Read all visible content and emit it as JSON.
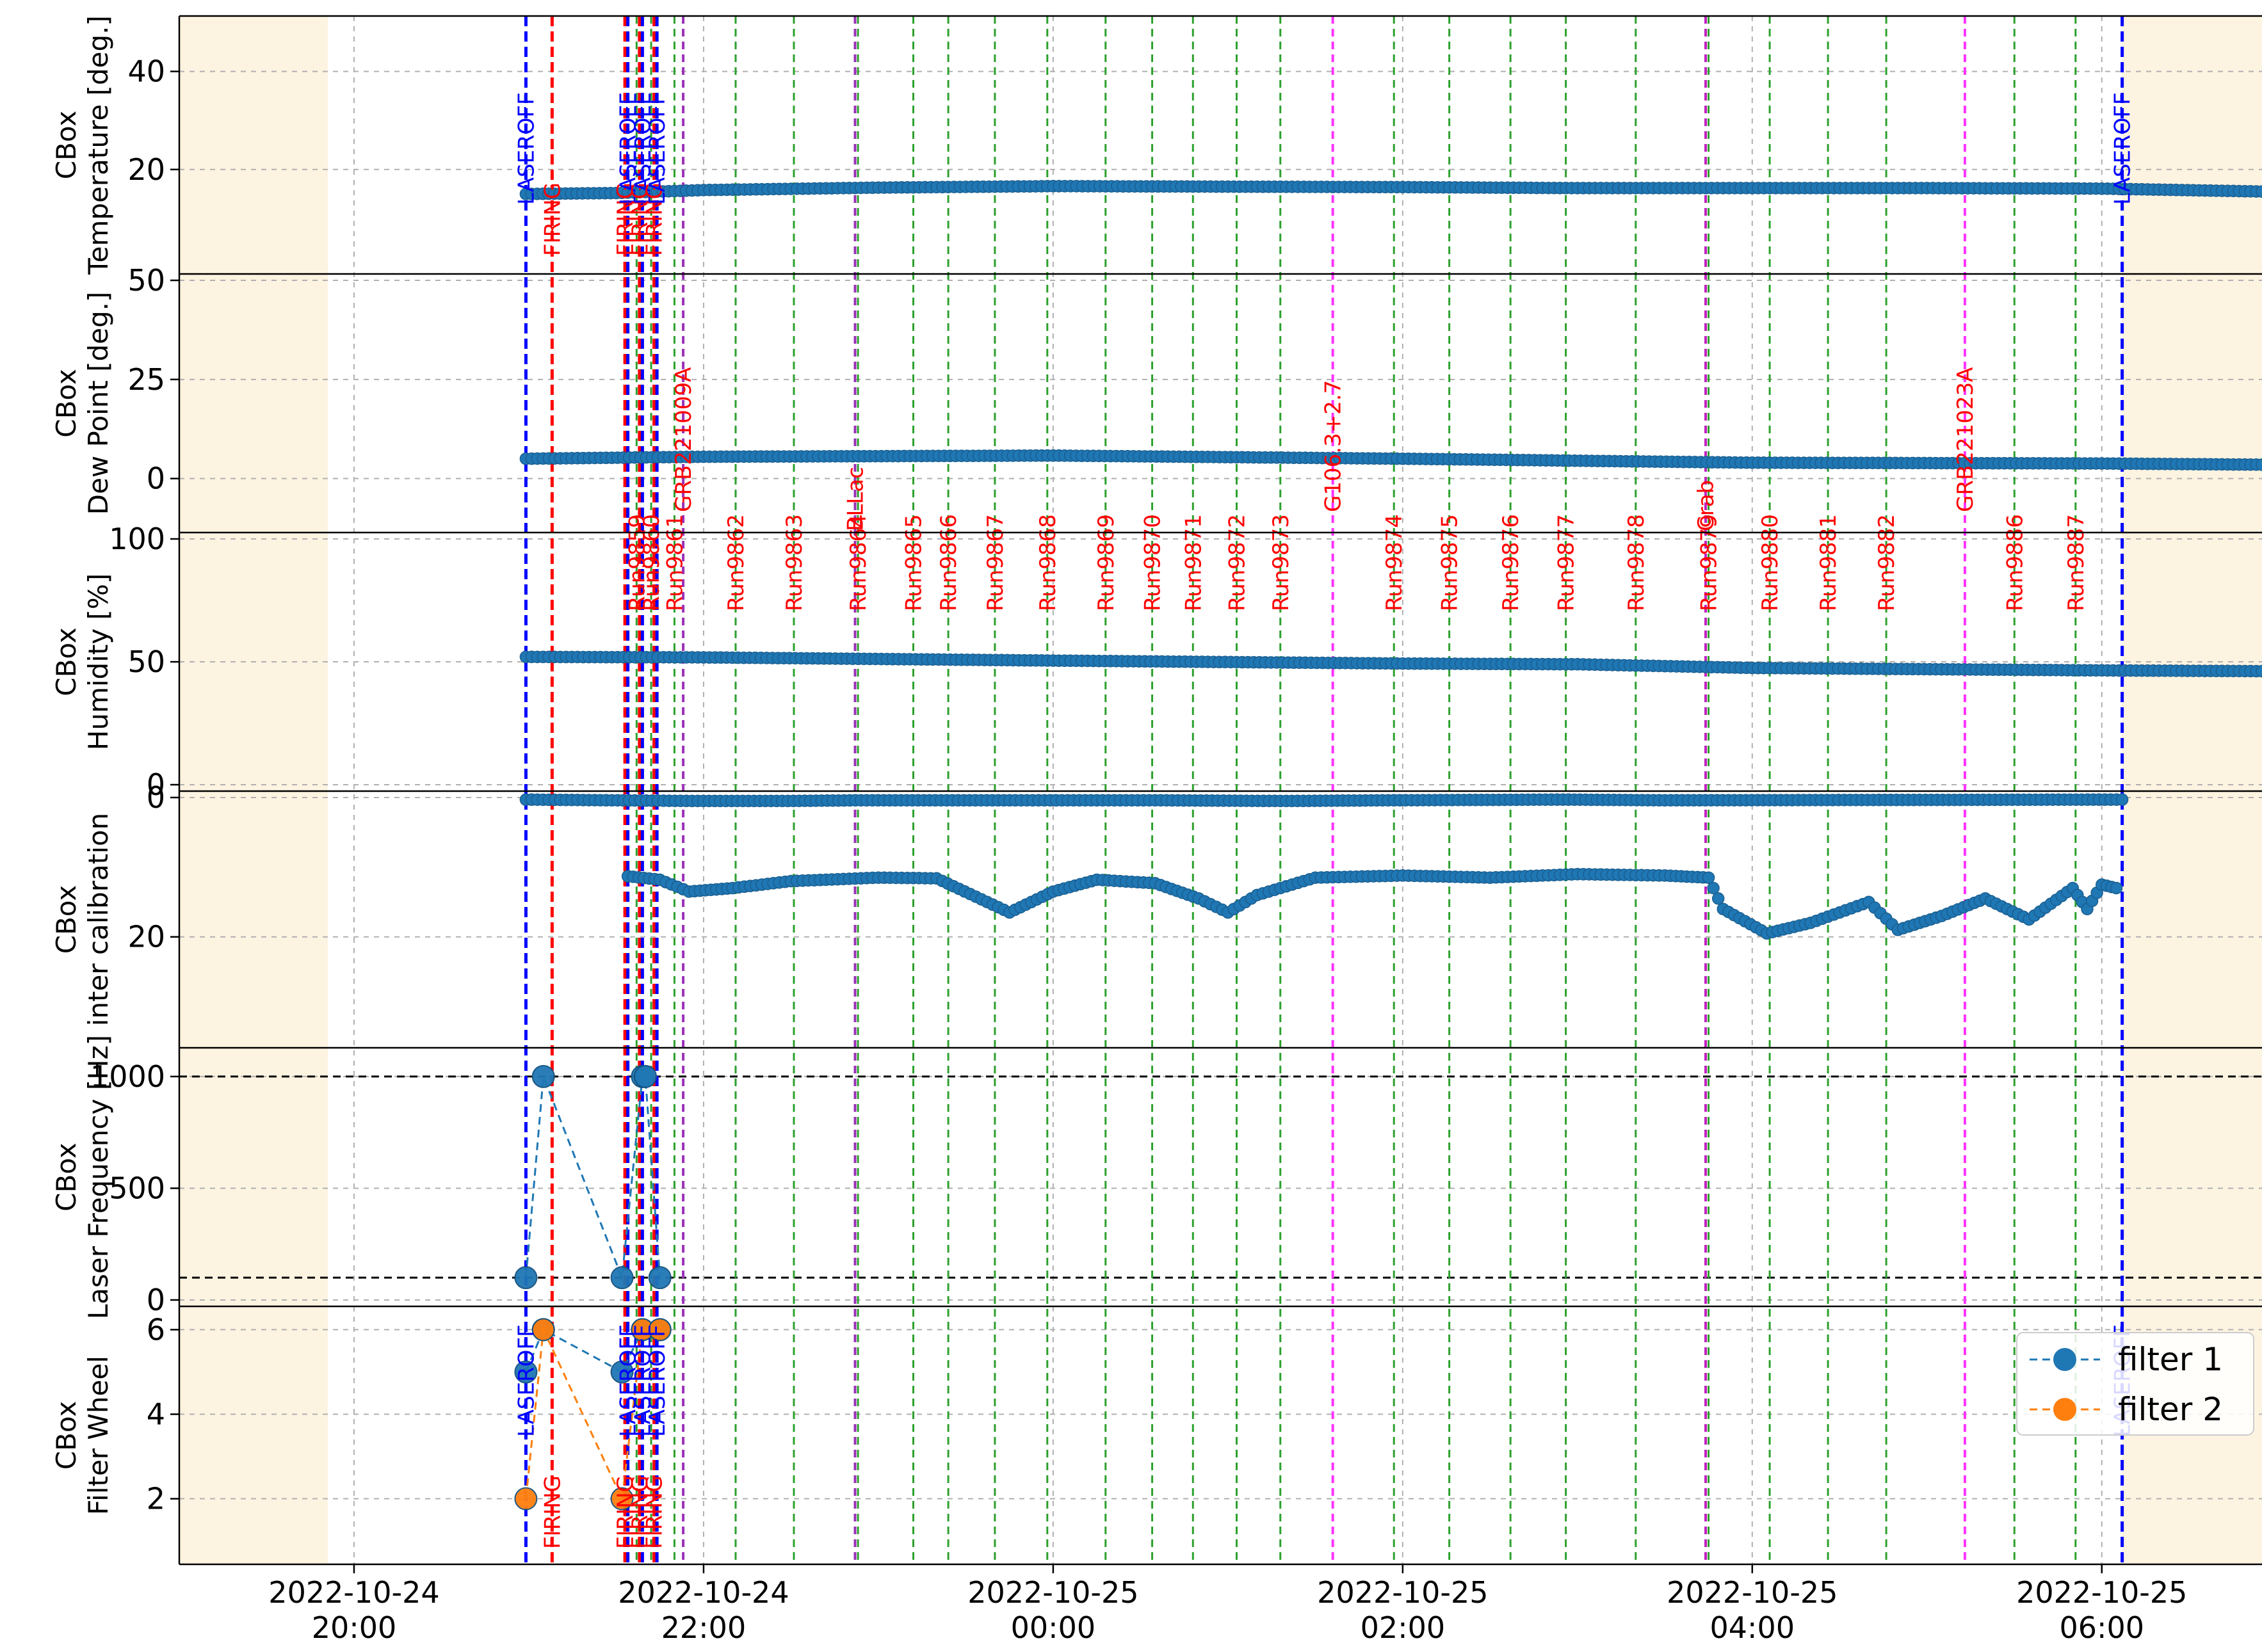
{
  "chart_data": {
    "type": "scatter",
    "x_axis": {
      "kind": "time",
      "range": [
        "2022-10-24T19:00",
        "2022-10-25T06:55"
      ],
      "ticks": [
        {
          "t": "2022-10-24T20:00",
          "line1": "2022-10-24",
          "line2": "20:00"
        },
        {
          "t": "2022-10-24T22:00",
          "line1": "2022-10-24",
          "line2": "22:00"
        },
        {
          "t": "2022-10-25T00:00",
          "line1": "2022-10-25",
          "line2": "00:00"
        },
        {
          "t": "2022-10-25T02:00",
          "line1": "2022-10-25",
          "line2": "02:00"
        },
        {
          "t": "2022-10-25T04:00",
          "line1": "2022-10-25",
          "line2": "04:00"
        },
        {
          "t": "2022-10-25T06:00",
          "line1": "2022-10-25",
          "line2": "06:00"
        }
      ]
    },
    "shaded_regions": [
      {
        "start": "2022-10-24T19:00",
        "end": "2022-10-24T19:51",
        "color": "#fdf3e1"
      },
      {
        "start": "2022-10-25T06:07",
        "end": "2022-10-25T06:55",
        "color": "#fdf3e1"
      }
    ],
    "panels": [
      {
        "ylabel": [
          "CBox",
          "Temperature [deg.]"
        ],
        "ylim": [
          0,
          50
        ],
        "yticks": [
          20,
          40
        ],
        "series": [
          {
            "name": "Temperature",
            "color": "#1f77b4",
            "points": [
              [
                "2022-10-24T20:59",
                15.0
              ],
              [
                "2022-10-24T21:30",
                15.2
              ],
              [
                "2022-10-24T22:00",
                15.8
              ],
              [
                "2022-10-24T23:00",
                16.3
              ],
              [
                "2022-10-25T00:00",
                16.6
              ],
              [
                "2022-10-25T01:00",
                16.5
              ],
              [
                "2022-10-25T02:00",
                16.4
              ],
              [
                "2022-10-25T03:00",
                16.2
              ],
              [
                "2022-10-25T04:00",
                16.2
              ],
              [
                "2022-10-25T05:00",
                16.2
              ],
              [
                "2022-10-25T06:00",
                16.1
              ],
              [
                "2022-10-25T06:55",
                15.5
              ]
            ]
          }
        ]
      },
      {
        "ylabel": [
          "CBox",
          "Dew Point [deg.]"
        ],
        "ylim": [
          -12,
          50
        ],
        "yticks": [
          0,
          25,
          50
        ],
        "series": [
          {
            "name": "Dew Point",
            "color": "#1f77b4",
            "points": [
              [
                "2022-10-24T20:59",
                5.0
              ],
              [
                "2022-10-24T22:00",
                5.5
              ],
              [
                "2022-10-25T00:00",
                5.8
              ],
              [
                "2022-10-25T02:00",
                5.0
              ],
              [
                "2022-10-25T04:00",
                4.0
              ],
              [
                "2022-10-25T06:00",
                3.8
              ],
              [
                "2022-10-25T06:55",
                3.5
              ]
            ]
          }
        ]
      },
      {
        "ylabel": [
          "CBox",
          "Humidity [%]"
        ],
        "ylim": [
          0,
          100
        ],
        "yticks": [
          0,
          50,
          100
        ],
        "series": [
          {
            "name": "Humidity",
            "color": "#1f77b4",
            "points": [
              [
                "2022-10-24T20:59",
                52.0
              ],
              [
                "2022-10-24T22:00",
                51.8
              ],
              [
                "2022-10-25T00:00",
                50.5
              ],
              [
                "2022-10-25T02:00",
                49.3
              ],
              [
                "2022-10-25T03:00",
                49.0
              ],
              [
                "2022-10-25T04:00",
                47.5
              ],
              [
                "2022-10-25T06:00",
                46.5
              ],
              [
                "2022-10-25T06:55",
                46.2
              ]
            ]
          }
        ]
      },
      {
        "ylabel": [
          "CBox",
          "inter calibration"
        ],
        "ylim": [
          0,
          35
        ],
        "yticks": [
          0,
          20
        ],
        "inverted": true,
        "series": [
          {
            "name": "inter calibration",
            "color": "#1f77b4",
            "points": [
              [
                "2022-10-24T21:34",
                11.3
              ],
              [
                "2022-10-24T21:45",
                11.8
              ],
              [
                "2022-10-24T21:55",
                13.5
              ],
              [
                "2022-10-24T22:10",
                13.0
              ],
              [
                "2022-10-24T22:30",
                12.0
              ],
              [
                "2022-10-24T23:00",
                11.5
              ],
              [
                "2022-10-24T23:20",
                11.6
              ],
              [
                "2022-10-24T23:45",
                16.5
              ],
              [
                "2022-10-25T00:00",
                13.5
              ],
              [
                "2022-10-25T00:15",
                11.8
              ],
              [
                "2022-10-25T00:35",
                12.3
              ],
              [
                "2022-10-25T00:50",
                14.5
              ],
              [
                "2022-10-25T01:00",
                16.5
              ],
              [
                "2022-10-25T01:10",
                14.0
              ],
              [
                "2022-10-25T01:30",
                11.5
              ],
              [
                "2022-10-25T02:00",
                11.2
              ],
              [
                "2022-10-25T02:30",
                11.5
              ],
              [
                "2022-10-25T03:00",
                11.0
              ],
              [
                "2022-10-25T03:30",
                11.2
              ],
              [
                "2022-10-25T03:45",
                11.5
              ],
              [
                "2022-10-25T03:50",
                16.0
              ],
              [
                "2022-10-25T04:05",
                19.5
              ],
              [
                "2022-10-25T04:20",
                18.0
              ],
              [
                "2022-10-25T04:40",
                15.0
              ],
              [
                "2022-10-25T04:50",
                19.0
              ],
              [
                "2022-10-25T05:05",
                17.0
              ],
              [
                "2022-10-25T05:20",
                14.5
              ],
              [
                "2022-10-25T05:35",
                17.5
              ],
              [
                "2022-10-25T05:50",
                13.0
              ],
              [
                "2022-10-25T05:55",
                16.0
              ],
              [
                "2022-10-25T06:00",
                12.5
              ],
              [
                "2022-10-25T06:05",
                13.0
              ]
            ]
          },
          {
            "name": "inter calibration near 0",
            "color": "#1f77b4",
            "points": [
              [
                "2022-10-24T20:59",
                0.3
              ],
              [
                "2022-10-24T21:58",
                0.5
              ],
              [
                "2022-10-24T22:27",
                0.5
              ],
              [
                "2022-10-24T22:54",
                0.4
              ],
              [
                "2022-10-24T23:47",
                0.4
              ],
              [
                "2022-10-25T00:35",
                0.4
              ],
              [
                "2022-10-25T01:20",
                0.5
              ],
              [
                "2022-10-25T01:55",
                0.4
              ],
              [
                "2022-10-25T02:55",
                0.3
              ],
              [
                "2022-10-25T03:30",
                0.4
              ],
              [
                "2022-10-25T06:07",
                0.3
              ]
            ]
          }
        ]
      },
      {
        "ylabel": [
          "CBox",
          "Laser Frequency [Hz]"
        ],
        "ylim": [
          0,
          1100
        ],
        "yticks": [
          0,
          500,
          1000
        ],
        "hlines": [
          1000,
          100
        ],
        "series": [
          {
            "name": "Laser Frequency",
            "color": "#1f77b4",
            "connected": true,
            "points": [
              [
                "2022-10-24T20:59",
                100
              ],
              [
                "2022-10-24T21:05",
                1000
              ],
              [
                "2022-10-24T21:32",
                100
              ],
              [
                "2022-10-24T21:39",
                1000
              ],
              [
                "2022-10-24T21:40",
                1000
              ],
              [
                "2022-10-24T21:45",
                100
              ]
            ]
          }
        ]
      },
      {
        "ylabel": [
          "CBox",
          "Filter Wheel"
        ],
        "ylim": [
          0.6,
          6.4
        ],
        "yticks": [
          2,
          4,
          6
        ],
        "series": [
          {
            "name": "filter 1",
            "color": "#1f77b4",
            "connected": true,
            "points": [
              [
                "2022-10-24T20:59",
                5.0
              ],
              [
                "2022-10-24T21:05",
                6.0
              ],
              [
                "2022-10-24T21:32",
                5.0
              ],
              [
                "2022-10-24T21:39",
                6.0
              ],
              [
                "2022-10-24T21:45",
                6.0
              ]
            ]
          },
          {
            "name": "filter 2",
            "color": "#ff7f0e",
            "connected": true,
            "points": [
              [
                "2022-10-24T20:59",
                2.0
              ],
              [
                "2022-10-24T21:05",
                6.0
              ],
              [
                "2022-10-24T21:32",
                2.0
              ],
              [
                "2022-10-24T21:39",
                6.0
              ],
              [
                "2022-10-24T21:45",
                6.0
              ]
            ]
          }
        ]
      }
    ],
    "laser_events": [
      {
        "t": "2022-10-24T20:59",
        "label": "LASEROFF",
        "color": "#0000ff"
      },
      {
        "t": "2022-10-24T21:08",
        "label": "FIRING",
        "color": "#ff0000"
      },
      {
        "t": "2022-10-24T21:33",
        "label": "FIRING",
        "color": "#ff0000"
      },
      {
        "t": "2022-10-24T21:34",
        "label": "LASEROFF",
        "color": "#0000ff"
      },
      {
        "t": "2022-10-24T21:38",
        "label": "FIRING",
        "color": "#ff0000"
      },
      {
        "t": "2022-10-24T21:39",
        "label": "LASEROFF",
        "color": "#0000ff"
      },
      {
        "t": "2022-10-24T21:43",
        "label": "FIRING",
        "color": "#ff0000"
      },
      {
        "t": "2022-10-24T21:44",
        "label": "LASEROFF",
        "color": "#0000ff"
      },
      {
        "t": "2022-10-25T06:07",
        "label": "LASEROFF",
        "color": "#0000ff"
      }
    ],
    "runs": [
      {
        "t": "2022-10-24T21:37",
        "label": "Run9859",
        "color": "#2ca02c"
      },
      {
        "t": "2022-10-24T21:42",
        "label": "Run9860",
        "color": "#2ca02c"
      },
      {
        "t": "2022-10-24T21:50",
        "label": "Run9861",
        "color": "#2ca02c"
      },
      {
        "t": "2022-10-24T22:11",
        "label": "Run9862",
        "color": "#2ca02c"
      },
      {
        "t": "2022-10-24T22:31",
        "label": "Run9863",
        "color": "#2ca02c"
      },
      {
        "t": "2022-10-24T22:53",
        "label": "Run9864",
        "color": "#2ca02c"
      },
      {
        "t": "2022-10-24T23:12",
        "label": "Run9865",
        "color": "#2ca02c"
      },
      {
        "t": "2022-10-24T23:24",
        "label": "Run9866",
        "color": "#2ca02c"
      },
      {
        "t": "2022-10-24T23:40",
        "label": "Run9867",
        "color": "#2ca02c"
      },
      {
        "t": "2022-10-24T23:58",
        "label": "Run9868",
        "color": "#2ca02c"
      },
      {
        "t": "2022-10-25T00:18",
        "label": "Run9869",
        "color": "#2ca02c"
      },
      {
        "t": "2022-10-25T00:34",
        "label": "Run9870",
        "color": "#2ca02c"
      },
      {
        "t": "2022-10-25T00:48",
        "label": "Run9871",
        "color": "#2ca02c"
      },
      {
        "t": "2022-10-25T01:03",
        "label": "Run9872",
        "color": "#2ca02c"
      },
      {
        "t": "2022-10-25T01:18",
        "label": "Run9873",
        "color": "#2ca02c"
      },
      {
        "t": "2022-10-25T01:57",
        "label": "Run9874",
        "color": "#2ca02c"
      },
      {
        "t": "2022-10-25T02:16",
        "label": "Run9875",
        "color": "#2ca02c"
      },
      {
        "t": "2022-10-25T02:37",
        "label": "Run9876",
        "color": "#2ca02c"
      },
      {
        "t": "2022-10-25T02:56",
        "label": "Run9877",
        "color": "#2ca02c"
      },
      {
        "t": "2022-10-25T03:20",
        "label": "Run9878",
        "color": "#2ca02c"
      },
      {
        "t": "2022-10-25T03:45",
        "label": "Run9879",
        "color": "#2ca02c"
      },
      {
        "t": "2022-10-25T04:06",
        "label": "Run9880",
        "color": "#2ca02c"
      },
      {
        "t": "2022-10-25T04:26",
        "label": "Run9881",
        "color": "#2ca02c"
      },
      {
        "t": "2022-10-25T04:46",
        "label": "Run9882",
        "color": "#2ca02c"
      },
      {
        "t": "2022-10-25T05:30",
        "label": "Run9886",
        "color": "#2ca02c"
      },
      {
        "t": "2022-10-25T05:51",
        "label": "Run9887",
        "color": "#2ca02c"
      }
    ],
    "sources": [
      {
        "t": "2022-10-24T21:53",
        "label": "GRB221009A",
        "color": "#9b30b8"
      },
      {
        "t": "2022-10-24T22:52",
        "label": "BLLac",
        "color": "#9b30b8"
      },
      {
        "t": "2022-10-25T01:36",
        "label": "G106.3+2.7",
        "color": "#ff33ff"
      },
      {
        "t": "2022-10-25T03:44",
        "label": "Crab",
        "color": "#c020c0"
      },
      {
        "t": "2022-10-25T05:13",
        "label": "GRB221023A",
        "color": "#ff33ff"
      }
    ],
    "legend": {
      "placement": "lower-right",
      "entries": [
        {
          "label": "filter 1",
          "color": "#1f77b4"
        },
        {
          "label": "filter 2",
          "color": "#ff7f0e"
        }
      ]
    },
    "grid": true,
    "colors": {
      "text": "#000000",
      "grid": "#b0b0b0",
      "panel_border": "#000000"
    }
  }
}
